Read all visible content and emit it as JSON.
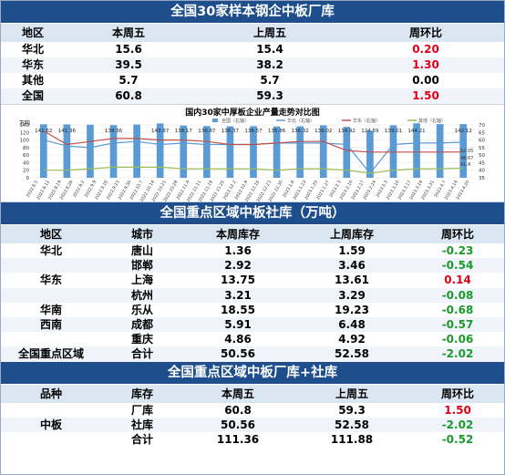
{
  "table1": {
    "title": "全国30家样本钢企中板厂库",
    "headers": [
      "地区",
      "本周五",
      "上周五",
      "周环比"
    ],
    "rows": [
      {
        "region": "华北",
        "this_week": "15.6",
        "last_week": "15.4",
        "change": "0.20",
        "trend": "red"
      },
      {
        "region": "华东",
        "this_week": "39.5",
        "last_week": "38.2",
        "change": "1.30",
        "trend": "red"
      },
      {
        "region": "其他",
        "this_week": "5.7",
        "last_week": "5.7",
        "change": "0.00",
        "trend": "black"
      },
      {
        "region": "全国",
        "this_week": "60.8",
        "last_week": "59.3",
        "change": "1.50",
        "trend": "red"
      }
    ]
  },
  "chart_data": {
    "type": "bar",
    "title": "国内30家中厚板企业产量走势对比图",
    "unit_left": "万吨",
    "legend": [
      "全国（右轴）",
      "华北（右轴）",
      "华东（右轴）",
      "其他（右轴）"
    ],
    "left_ticks": [
      "140",
      "120",
      "100",
      "80",
      "60",
      "40",
      "20",
      "0"
    ],
    "right_ticks": [
      "70",
      "65",
      "60",
      "55",
      "50",
      "45",
      "40",
      "35"
    ],
    "ylim_left": [
      0,
      140
    ],
    "ylim_right": [
      35,
      70
    ],
    "categories": [
      "2022.8.5",
      "2022.8.19",
      "2022.9.2",
      "2022.9.16",
      "2022.9.30",
      "2022.10.14",
      "2022.10.28",
      "2022.11.11",
      "2022.11.25",
      "2022.12.9",
      "2022.12.23",
      "2023.1.6",
      "2023.1.20",
      "2023.2.3",
      "2023.2.17",
      "2023.3.3",
      "2023.3.17",
      "2023.3.31",
      "2023.4.14"
    ],
    "x_tick_labels": [
      "2022.8.5",
      "2022.8.12",
      "2022.8.19",
      "2022.8.26",
      "2022.9.2",
      "2022.9.9",
      "2022.9.16",
      "2022.9.23",
      "2022.9.30",
      "2022.10.7",
      "2022.10.14",
      "2022.10.21",
      "2022.10.28",
      "2022.11.4",
      "2022.11.11",
      "2022.11.18",
      "2022.11.25",
      "2022.12.2",
      "2022.12.9",
      "2022.12.16",
      "2022.12.23",
      "2022.12.30",
      "2023.1.6",
      "2023.1.13",
      "2023.1.20",
      "2023.1.27",
      "2023.2.3",
      "2023.2.10",
      "2023.2.17",
      "2023.2.24",
      "2023.3.3",
      "2023.3.10",
      "2023.3.17",
      "2023.3.24",
      "2023.3.31",
      "2023.4.7",
      "2023.4.14",
      "2023.4.20"
    ],
    "bar_values": [
      141.62,
      141.36,
      140.5,
      139.36,
      141.0,
      143.87,
      138.17,
      136.87,
      136.37,
      136.57,
      135.86,
      136.32,
      139.02,
      134.92,
      124.59,
      139.01,
      144.21,
      142.12,
      142.12
    ],
    "bar_labels": [
      "141.62",
      "141.36",
      "",
      "139.36",
      "",
      "143.87",
      "138.17",
      "136.87",
      "136.37",
      "136.57",
      "135.86",
      "136.32",
      "139.02",
      "134.92",
      "124.59",
      "139.01",
      "144.21",
      "",
      "142.12"
    ],
    "series": [
      {
        "name": "华北",
        "color": "#5b9bd5",
        "values": [
          60,
          56,
          55,
          58,
          59,
          57,
          58,
          57,
          57,
          57,
          58,
          58,
          58,
          57,
          38,
          57,
          58,
          58,
          58.6
        ]
      },
      {
        "name": "华东",
        "color": "#c0504d",
        "values": [
          66,
          57,
          59,
          61,
          61,
          60,
          60,
          59,
          57,
          57,
          58,
          59,
          59,
          53,
          52,
          52,
          52,
          52,
          52.05
        ]
      },
      {
        "name": "其他",
        "color": "#9bbb59",
        "values": [
          40,
          40,
          41,
          42,
          42,
          42,
          41,
          41,
          41,
          41,
          40,
          41,
          41,
          40,
          38,
          40,
          41,
          41,
          41.4
        ]
      }
    ],
    "line_end_labels": [
      "52.05",
      "48.67",
      "41.4"
    ]
  },
  "table2": {
    "title": "全国重点区域中板社库（万吨）",
    "headers": [
      "地区",
      "城市",
      "本周库存",
      "上周库存",
      "周环比"
    ],
    "rows": [
      {
        "region": "华北",
        "city": "唐山",
        "this_week": "1.36",
        "last_week": "1.59",
        "change": "-0.23",
        "trend": "green"
      },
      {
        "region": "",
        "city": "邯郸",
        "this_week": "2.92",
        "last_week": "3.46",
        "change": "-0.54",
        "trend": "green"
      },
      {
        "region": "华东",
        "city": "上海",
        "this_week": "13.75",
        "last_week": "13.61",
        "change": "0.14",
        "trend": "red"
      },
      {
        "region": "",
        "city": "杭州",
        "this_week": "3.21",
        "last_week": "3.29",
        "change": "-0.08",
        "trend": "green"
      },
      {
        "region": "华南",
        "city": "乐从",
        "this_week": "18.55",
        "last_week": "19.23",
        "change": "-0.68",
        "trend": "green"
      },
      {
        "region": "西南",
        "city": "成都",
        "this_week": "5.91",
        "last_week": "6.48",
        "change": "-0.57",
        "trend": "green"
      },
      {
        "region": "",
        "city": "重庆",
        "this_week": "4.86",
        "last_week": "4.92",
        "change": "-0.06",
        "trend": "green"
      },
      {
        "region": "全国重点区域",
        "city": "合计",
        "this_week": "50.56",
        "last_week": "52.58",
        "change": "-2.02",
        "trend": "green"
      }
    ]
  },
  "table3": {
    "title": "全国重点区域中板厂库+社库",
    "headers": [
      "品种",
      "库存",
      "本周五",
      "上周五",
      "周环比"
    ],
    "variety": "中板",
    "rows": [
      {
        "stock": "厂库",
        "this_week": "60.8",
        "last_week": "59.3",
        "change": "1.50",
        "trend": "red"
      },
      {
        "stock": "社库",
        "this_week": "50.56",
        "last_week": "52.58",
        "change": "-2.02",
        "trend": "green"
      },
      {
        "stock": "合计",
        "this_week": "111.36",
        "last_week": "111.88",
        "change": "-0.52",
        "trend": "green"
      }
    ]
  }
}
